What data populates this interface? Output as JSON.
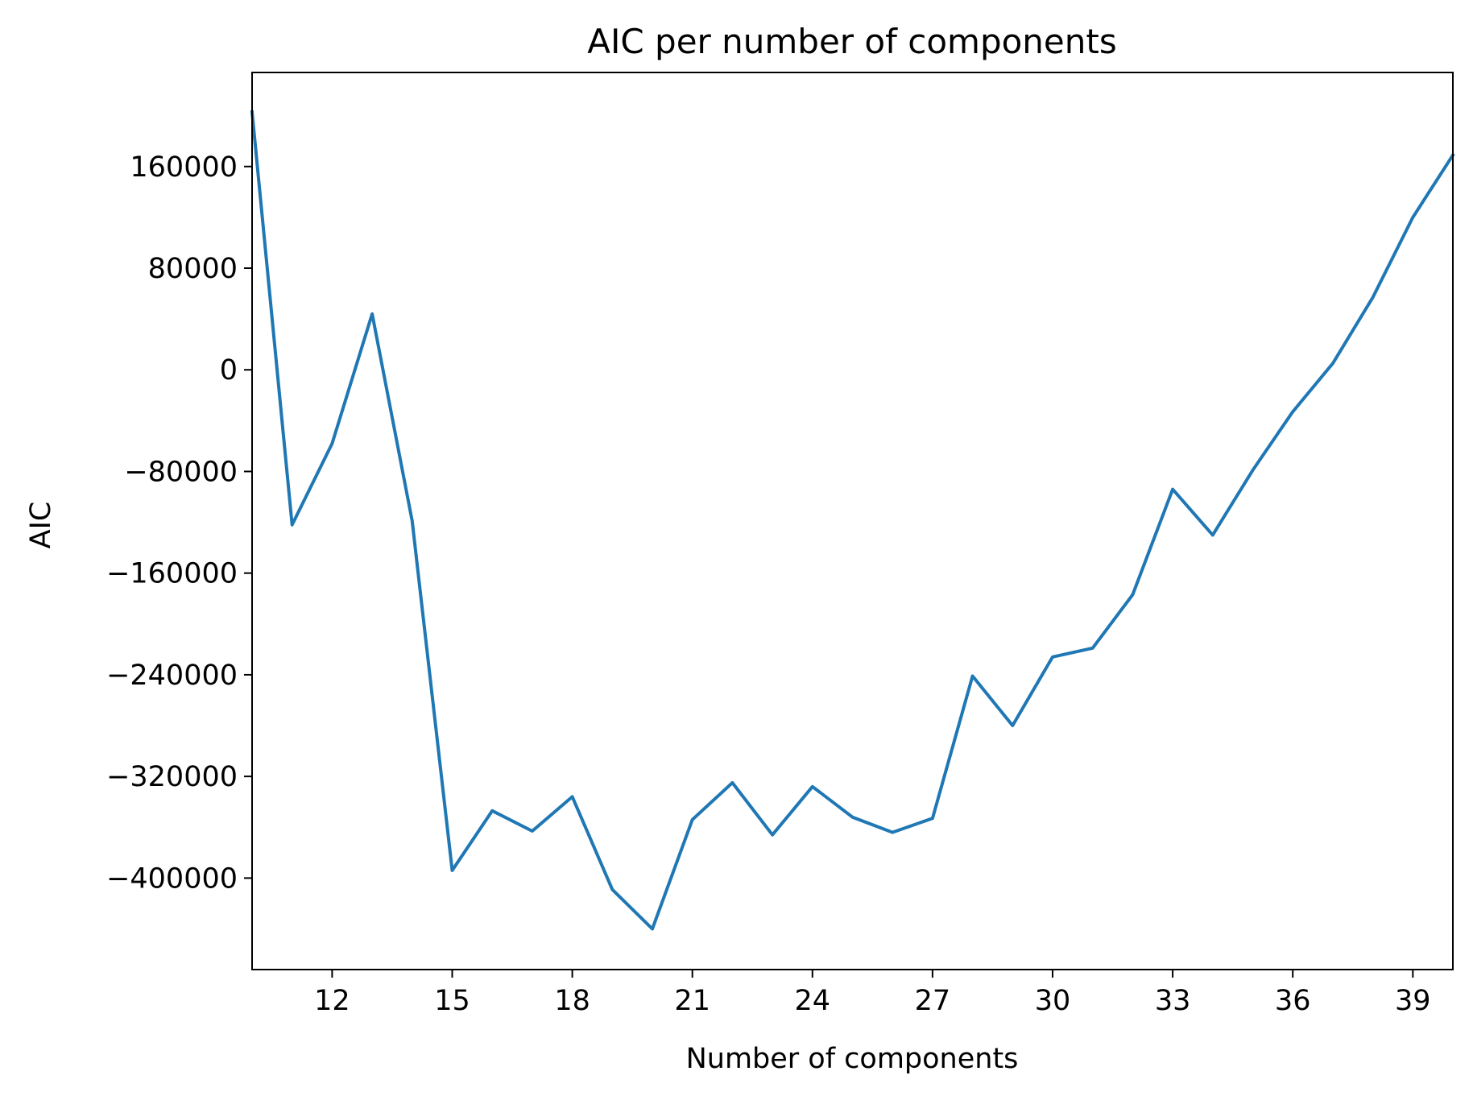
{
  "chart_data": {
    "type": "line",
    "title": "AIC per number of components",
    "xlabel": "Number of components",
    "ylabel": "AIC",
    "xlim": [
      10,
      40
    ],
    "ylim": [
      -472000,
      234000
    ],
    "x_ticks": [
      12,
      15,
      18,
      21,
      24,
      27,
      30,
      33,
      36,
      39
    ],
    "x_tick_labels": [
      "12",
      "15",
      "18",
      "21",
      "24",
      "27",
      "30",
      "33",
      "36",
      "39"
    ],
    "y_ticks": [
      160000,
      80000,
      0,
      -80000,
      -160000,
      -240000,
      -320000,
      -400000
    ],
    "y_tick_labels": [
      "160000",
      "80000",
      "0",
      "−80000",
      "−160000",
      "−240000",
      "−320000",
      "−400000"
    ],
    "grid": false,
    "legend": "none",
    "series": [
      {
        "color": "#1f77b4",
        "x": [
          10,
          11,
          12,
          13,
          14,
          15,
          16,
          17,
          18,
          19,
          20,
          21,
          22,
          23,
          24,
          25,
          26,
          27,
          28,
          29,
          30,
          31,
          32,
          33,
          34,
          35,
          36,
          37,
          38,
          39,
          40
        ],
        "y": [
          203000,
          -122000,
          -58000,
          44000,
          -119000,
          -394000,
          -347000,
          -363000,
          -336000,
          -409000,
          -440000,
          -354000,
          -325000,
          -366000,
          -328000,
          -352000,
          -364000,
          -353000,
          -241000,
          -280000,
          -226000,
          -219000,
          -177000,
          -94000,
          -130000,
          -79000,
          -33000,
          5000,
          57000,
          120000,
          169000
        ]
      }
    ]
  }
}
